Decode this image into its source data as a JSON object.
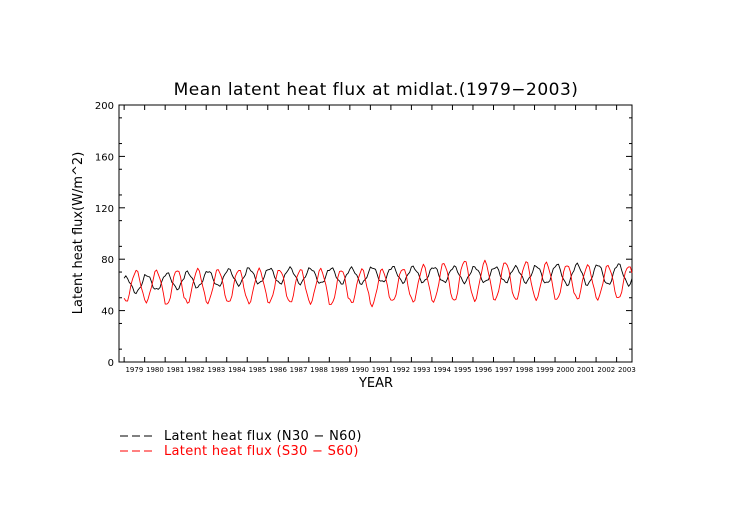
{
  "chart_data": {
    "type": "line",
    "title": "Mean latent heat flux at midlat.(1979−2003)",
    "xlabel": "YEAR",
    "ylabel": "Latent heat flux(W/m^2)",
    "ylim": [
      0,
      200
    ],
    "xlim": [
      1978.75,
      2003.75
    ],
    "yticks": [
      0,
      40,
      80,
      120,
      160,
      200
    ],
    "ytick_labels": [
      "0",
      "40",
      "80",
      "120",
      "160",
      "200"
    ],
    "x_tick_labels": [
      "1979",
      "1980",
      "1981",
      "1982",
      "1983",
      "1984",
      "1985",
      "1986",
      "1987",
      "1988",
      "1989",
      "1990",
      "1991",
      "1992",
      "1993",
      "1994",
      "1995",
      "1996",
      "1997",
      "1998",
      "1999",
      "2000",
      "2001",
      "2002",
      "2003"
    ],
    "grid": false,
    "legend_position": "below-left",
    "series": [
      {
        "name": "Latent heat flux (N30 − N60)",
        "color": "#000000",
        "seasonal_model": {
          "mean": [
            60,
            62,
            63,
            64,
            65,
            66,
            67,
            67,
            67,
            67,
            67,
            67,
            68,
            68,
            68,
            68,
            68,
            68,
            68,
            68,
            68,
            68,
            68,
            68,
            68
          ],
          "amplitude": [
            6,
            6,
            6,
            6,
            6,
            6,
            6,
            6,
            6,
            6,
            6,
            6,
            6,
            6,
            6,
            6,
            6,
            6,
            6,
            6,
            7,
            8,
            8,
            8,
            8
          ],
          "peak_month": 1
        }
      },
      {
        "name": "Latent heat flux (S30 − S60)",
        "color": "#ff0000",
        "seasonal_model": {
          "mean": [
            59,
            59,
            58,
            59,
            59,
            59,
            59,
            59,
            59,
            59,
            58,
            59,
            58,
            60,
            61,
            62,
            63,
            63,
            63,
            63,
            63,
            62,
            62,
            62,
            62
          ],
          "amplitude": [
            12,
            12,
            14,
            13,
            13,
            13,
            13,
            13,
            13,
            13,
            14,
            13,
            14,
            13,
            14,
            15,
            16,
            15,
            15,
            15,
            14,
            14,
            13,
            13,
            13
          ],
          "peak_month": 7
        }
      }
    ]
  },
  "legend": {
    "items": [
      {
        "label": "Latent heat flux (N30 − N60)",
        "color": "#000000"
      },
      {
        "label": "Latent heat flux (S30 − S60)",
        "color": "#ff0000"
      }
    ]
  }
}
